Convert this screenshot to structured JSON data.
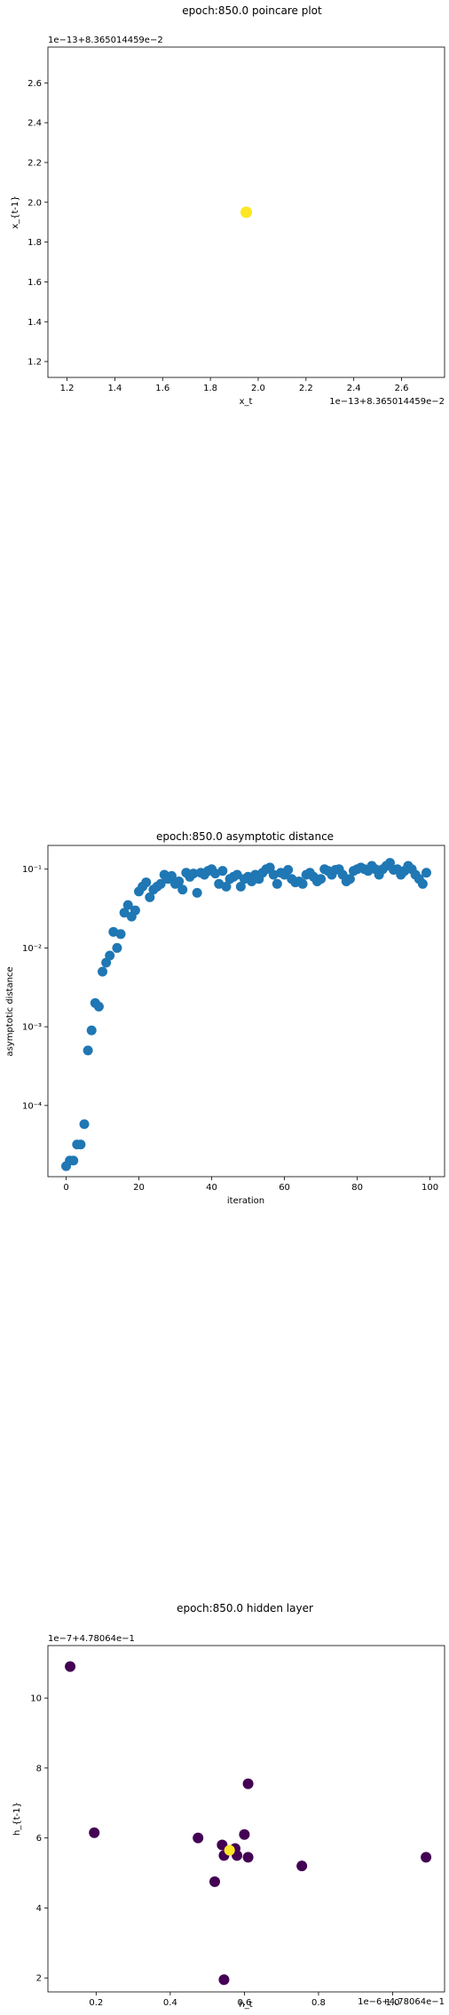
{
  "chart_data": [
    {
      "type": "scatter",
      "title": "epoch:850.0 poincare plot",
      "xlabel": "x_t",
      "ylabel": "x_{t-1}",
      "x_offset_label": "1e−13+8.365014459e−2",
      "y_offset_label": "1e−13+8.365014459e−2",
      "xlim": [
        1.12,
        2.78
      ],
      "ylim": [
        1.12,
        2.78
      ],
      "xticks": [
        1.2,
        1.4,
        1.6,
        1.8,
        2.0,
        2.2,
        2.4,
        2.6
      ],
      "yticks": [
        1.2,
        1.4,
        1.6,
        1.8,
        2.0,
        2.2,
        2.4,
        2.6
      ],
      "tick_labels": [
        "1.2",
        "1.4",
        "1.6",
        "1.8",
        "2.0",
        "2.2",
        "2.4",
        "2.6"
      ],
      "points": [
        {
          "x": 1.95,
          "y": 1.95,
          "color": "#fde725"
        }
      ]
    },
    {
      "type": "scatter",
      "title": "epoch:850.0 asymptotic distance",
      "xlabel": "iteration",
      "ylabel": "asymptotic distance",
      "y_scale": "log",
      "xlim": [
        -5,
        104
      ],
      "ylim": [
        1.25e-05,
        0.2
      ],
      "xticks": [
        0,
        20,
        40,
        60,
        80,
        100
      ],
      "xtick_labels": [
        "0",
        "20",
        "40",
        "60",
        "80",
        "100"
      ],
      "yticks": [
        0.0001,
        0.001,
        0.01,
        0.1
      ],
      "ytick_labels": [
        "10⁻⁴",
        "10⁻³",
        "10⁻²",
        "10⁻¹"
      ],
      "color": "#1f77b4",
      "x": [
        0,
        1,
        2,
        3,
        4,
        5,
        6,
        7,
        8,
        9,
        10,
        11,
        12,
        13,
        14,
        15,
        16,
        17,
        18,
        19,
        20,
        21,
        22,
        23,
        24,
        25,
        26,
        27,
        28,
        29,
        30,
        31,
        32,
        33,
        34,
        35,
        36,
        37,
        38,
        39,
        40,
        41,
        42,
        43,
        44,
        45,
        46,
        47,
        48,
        49,
        50,
        51,
        52,
        53,
        54,
        55,
        56,
        57,
        58,
        59,
        60,
        61,
        62,
        63,
        64,
        65,
        66,
        67,
        68,
        69,
        70,
        71,
        72,
        73,
        74,
        75,
        76,
        77,
        78,
        79,
        80,
        81,
        82,
        83,
        84,
        85,
        86,
        87,
        88,
        89,
        90,
        91,
        92,
        93,
        94,
        95,
        96,
        97,
        98,
        99
      ],
      "y": [
        1.7e-05,
        2e-05,
        2e-05,
        3.2e-05,
        3.2e-05,
        5.8e-05,
        0.0005,
        0.0009,
        0.002,
        0.0018,
        0.005,
        0.0065,
        0.008,
        0.016,
        0.01,
        0.015,
        0.028,
        0.035,
        0.025,
        0.03,
        0.052,
        0.06,
        0.068,
        0.044,
        0.055,
        0.06,
        0.065,
        0.085,
        0.075,
        0.082,
        0.065,
        0.07,
        0.055,
        0.09,
        0.08,
        0.088,
        0.05,
        0.09,
        0.085,
        0.095,
        0.1,
        0.088,
        0.065,
        0.095,
        0.06,
        0.075,
        0.08,
        0.085,
        0.06,
        0.075,
        0.08,
        0.07,
        0.085,
        0.075,
        0.09,
        0.1,
        0.105,
        0.085,
        0.065,
        0.09,
        0.085,
        0.098,
        0.075,
        0.068,
        0.07,
        0.065,
        0.085,
        0.09,
        0.08,
        0.07,
        0.075,
        0.1,
        0.095,
        0.085,
        0.098,
        0.1,
        0.085,
        0.07,
        0.075,
        0.095,
        0.1,
        0.105,
        0.1,
        0.095,
        0.11,
        0.1,
        0.085,
        0.1,
        0.11,
        0.12,
        0.098,
        0.1,
        0.085,
        0.095,
        0.11,
        0.1,
        0.085,
        0.075,
        0.065,
        0.09
      ]
    },
    {
      "type": "scatter",
      "title": "epoch:850.0 hidden layer",
      "xlabel": "h_t",
      "ylabel": "h_{t-1}",
      "x_offset_label": "1e−6+4.78064e−1",
      "y_offset_label": "1e−7+4.78064e−1",
      "xlim": [
        0.07,
        1.14
      ],
      "ylim": [
        1.6,
        11.5
      ],
      "xticks": [
        0.2,
        0.4,
        0.6,
        0.8,
        1.0
      ],
      "xtick_labels": [
        "0.2",
        "0.4",
        "0.6",
        "0.8",
        "1.0"
      ],
      "yticks": [
        2,
        4,
        6,
        8,
        10
      ],
      "ytick_labels": [
        "2",
        "4",
        "6",
        "8",
        "10"
      ],
      "points": [
        {
          "x": 0.13,
          "y": 10.9,
          "color": "#440154"
        },
        {
          "x": 0.195,
          "y": 6.15,
          "color": "#440154"
        },
        {
          "x": 0.475,
          "y": 6.0,
          "color": "#440154"
        },
        {
          "x": 0.52,
          "y": 4.75,
          "color": "#440154"
        },
        {
          "x": 0.54,
          "y": 5.8,
          "color": "#440154"
        },
        {
          "x": 0.545,
          "y": 5.5,
          "color": "#440154"
        },
        {
          "x": 0.545,
          "y": 1.95,
          "color": "#440154"
        },
        {
          "x": 0.575,
          "y": 5.7,
          "color": "#440154"
        },
        {
          "x": 0.58,
          "y": 5.5,
          "color": "#440154"
        },
        {
          "x": 0.6,
          "y": 6.1,
          "color": "#440154"
        },
        {
          "x": 0.61,
          "y": 7.55,
          "color": "#440154"
        },
        {
          "x": 0.61,
          "y": 5.45,
          "color": "#440154"
        },
        {
          "x": 0.755,
          "y": 5.2,
          "color": "#440154"
        },
        {
          "x": 1.09,
          "y": 5.45,
          "color": "#440154"
        },
        {
          "x": 0.56,
          "y": 5.65,
          "color": "#fde725"
        }
      ]
    }
  ]
}
